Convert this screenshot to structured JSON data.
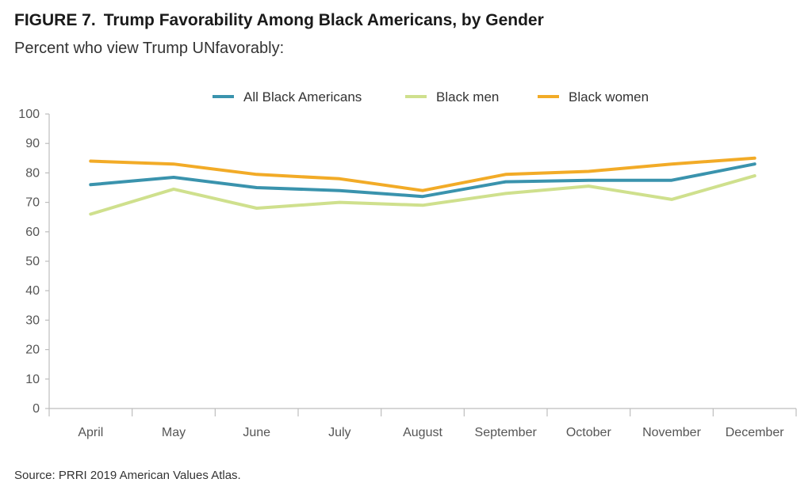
{
  "figure": {
    "label": "FIGURE 7.",
    "title": "Trump Favorability Among Black Americans, by Gender",
    "subtitle": "Percent who view Trump UNfavorably:",
    "source": "Source: PRRI 2019 American Values Atlas."
  },
  "chart_data": {
    "type": "line",
    "title": "Trump Favorability Among Black Americans, by Gender",
    "subtitle": "Percent who view Trump UNfavorably:",
    "xlabel": "",
    "ylabel": "",
    "ylim": [
      0,
      100
    ],
    "yticks": [
      "0",
      "10",
      "20",
      "30",
      "40",
      "50",
      "60",
      "70",
      "80",
      "90",
      "100"
    ],
    "categories": [
      "April",
      "May",
      "June",
      "July",
      "August",
      "September",
      "October",
      "November",
      "December"
    ],
    "grid": false,
    "legend_position": "top",
    "series": [
      {
        "name": "All Black Americans",
        "color": "#3a93ad",
        "values": [
          76,
          78.5,
          75,
          74,
          72,
          77,
          77.5,
          77.5,
          83
        ]
      },
      {
        "name": "Black men",
        "color": "#cfe08d",
        "values": [
          66,
          74.5,
          68,
          70,
          69,
          73,
          75.5,
          71,
          79
        ]
      },
      {
        "name": "Black women",
        "color": "#f2ab27",
        "values": [
          84,
          83,
          79.5,
          78,
          74,
          79.5,
          80.5,
          83,
          85
        ]
      }
    ]
  }
}
